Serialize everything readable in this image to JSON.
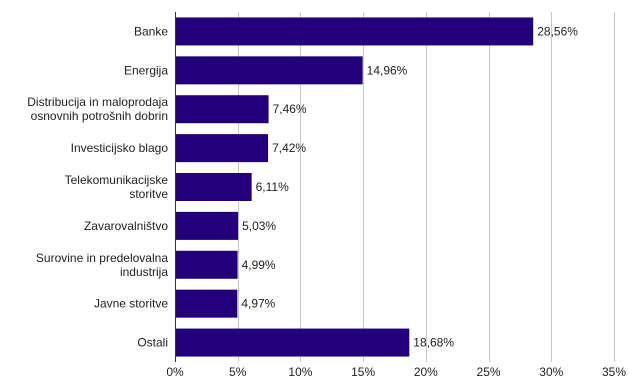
{
  "chart_data": {
    "type": "bar",
    "orientation": "horizontal",
    "categories": [
      "Banke",
      "Energija",
      "Distribucija in maloprodaja osnovnih potrošnih dobrin",
      "Investicijsko blago",
      "Telekomunikacijske storitve",
      "Zavarovalništvo",
      "Surovine in predelovalna industrija",
      "Javne storitve",
      "Ostali"
    ],
    "category_lines": [
      [
        "Banke"
      ],
      [
        "Energija"
      ],
      [
        "Distribucija in maloprodaja",
        "osnovnih potrošnih dobrin"
      ],
      [
        "Investicijsko blago"
      ],
      [
        "Telekomunikacijske",
        "storitve"
      ],
      [
        "Zavarovalništvo"
      ],
      [
        "Surovine in predelovalna",
        "industrija"
      ],
      [
        "Javne storitve"
      ],
      [
        "Ostali"
      ]
    ],
    "values": [
      28.56,
      14.96,
      7.46,
      7.42,
      6.11,
      5.03,
      4.99,
      4.97,
      18.68
    ],
    "value_labels": [
      "28,56%",
      "14,96%",
      "7,46%",
      "7,42%",
      "6,11%",
      "5,03%",
      "4,99%",
      "4,97%",
      "18,68%"
    ],
    "xlim": [
      0,
      35
    ],
    "xticks": [
      0,
      5,
      10,
      15,
      20,
      25,
      30,
      35
    ],
    "xtick_labels": [
      "0%",
      "5%",
      "10%",
      "15%",
      "20%",
      "25%",
      "30%",
      "35%"
    ],
    "grid": true,
    "bar_color": "#22007a",
    "grid_color": "#c8c8c8",
    "title": "",
    "xlabel": "",
    "ylabel": ""
  }
}
